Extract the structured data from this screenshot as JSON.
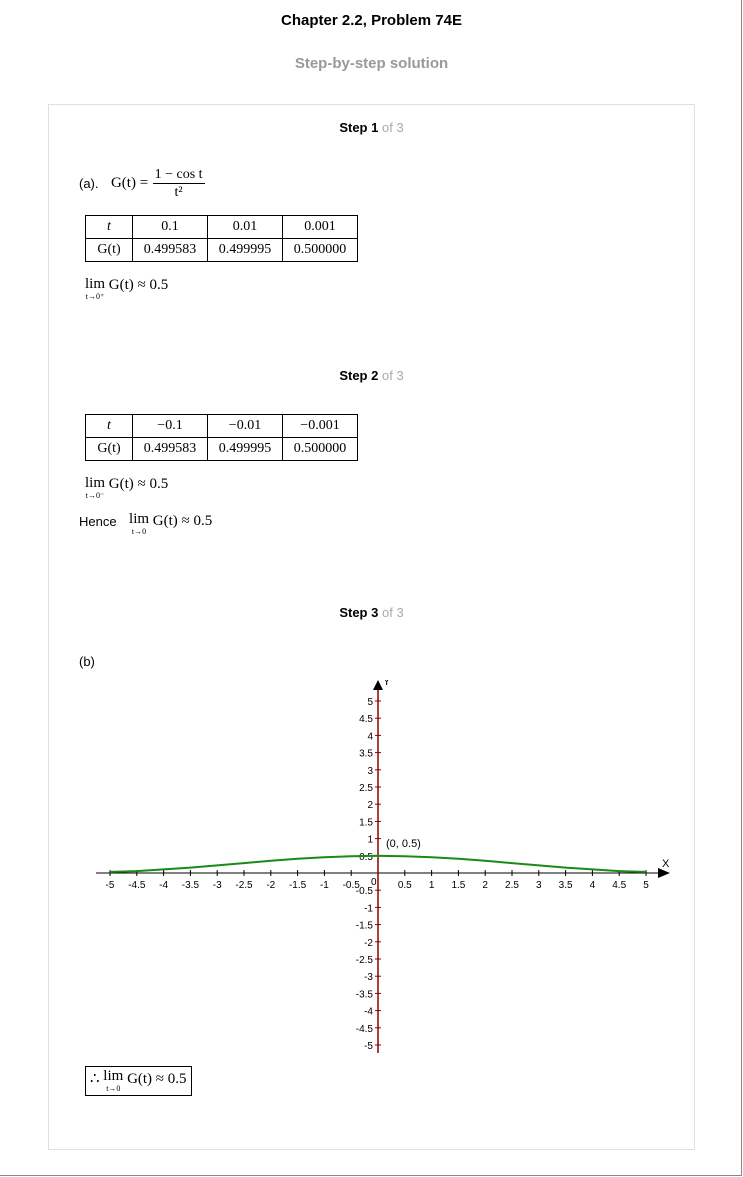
{
  "header": {
    "title": "Chapter 2.2, Problem 74E",
    "subtitle": "Step-by-step solution"
  },
  "steps": [
    {
      "word": "Step",
      "number": "1",
      "of": "of 3"
    },
    {
      "word": "Step",
      "number": "2",
      "of": "of 3"
    },
    {
      "word": "Step",
      "number": "3",
      "of": "of 3"
    }
  ],
  "step1": {
    "part_label": "(a).",
    "func_lhs": "G(t) =",
    "func_num": "1 − cos t",
    "func_den": "t²",
    "table": {
      "row1": [
        "t",
        "0.1",
        "0.01",
        "0.001"
      ],
      "row2": [
        "G(t)",
        "0.499583",
        "0.499995",
        "0.500000"
      ]
    },
    "limit_word": "lim",
    "limit_sub": "t→0⁺",
    "limit_expr": "G(t) ≈ 0.5"
  },
  "step2": {
    "table": {
      "row1": [
        "t",
        "−0.1",
        "−0.01",
        "−0.001"
      ],
      "row2": [
        "G(t)",
        "0.499583",
        "0.499995",
        "0.500000"
      ]
    },
    "limit_word": "lim",
    "limit_sub": "t→0⁻",
    "limit_expr": "G(t) ≈ 0.5",
    "hence_label": "Hence",
    "hence_sub": "t→0",
    "hence_expr": "G(t) ≈ 0.5"
  },
  "step3": {
    "part_label": "(b)",
    "final_therefore": "∴",
    "final_lim": "lim",
    "final_sub": "t→0",
    "final_expr": "G(t) ≈ 0.5"
  },
  "chart_data": {
    "type": "line",
    "title": "",
    "xlabel": "X",
    "ylabel": "Y",
    "xlim": [
      -5,
      5
    ],
    "ylim": [
      -5,
      5
    ],
    "x_ticks": [
      "-5",
      "-4.5",
      "-4",
      "-3.5",
      "-3",
      "-2.5",
      "-2",
      "-1.5",
      "-1",
      "-0.5",
      "0",
      "0.5",
      "1",
      "1.5",
      "2",
      "2.5",
      "3",
      "3.5",
      "4",
      "4.5",
      "5"
    ],
    "y_ticks": [
      "5",
      "4.5",
      "4",
      "3.5",
      "3",
      "2.5",
      "2",
      "1.5",
      "1",
      "0.5",
      "-0.5",
      "-1",
      "-1.5",
      "-2",
      "-2.5",
      "-3",
      "-3.5",
      "-4",
      "-4.5",
      "-5"
    ],
    "annotation": "(0, 0.5)",
    "series": [
      {
        "function": "(1 - cos t) / t^2",
        "color": "#1a8a1a",
        "x": [
          -5,
          -4.5,
          -4,
          -3.5,
          -3,
          -2.5,
          -2,
          -1.5,
          -1,
          -0.5,
          0,
          0.5,
          1,
          1.5,
          2,
          2.5,
          3,
          3.5,
          4,
          4.5,
          5
        ],
        "y": [
          0.0327,
          0.0541,
          0.1033,
          0.1574,
          0.2211,
          0.2882,
          0.354,
          0.413,
          0.4597,
          0.4896,
          0.5,
          0.4896,
          0.4597,
          0.413,
          0.354,
          0.2882,
          0.2211,
          0.1574,
          0.1033,
          0.0541,
          0.0327
        ]
      }
    ],
    "colors": {
      "x_axis": "#000000",
      "y_axis": "#8b0000",
      "curve": "#1a8a1a"
    }
  }
}
